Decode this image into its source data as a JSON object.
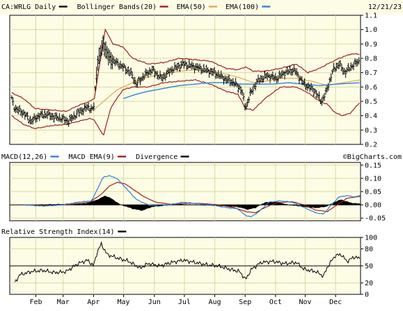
{
  "chart_data": [
    {
      "type": "ohlc",
      "panel": "price",
      "title": "CA:WRLG Daily",
      "date_label": "12/21/23",
      "legend": [
        {
          "label": "Bollinger Bands(20)",
          "color": "#9a2020"
        },
        {
          "label": "EMA(50)",
          "color": "#e0a84a"
        },
        {
          "label": "EMA(100)",
          "color": "#2f7fd8"
        }
      ],
      "legend_swatch_color": "#000000",
      "ylim": [
        0.2,
        1.1
      ],
      "y_ticks": [
        "1.1",
        "1.0",
        "0.9",
        "0.8",
        "0.7",
        "0.6",
        "0.5",
        "0.4",
        "0.3",
        "0.2"
      ],
      "y_tick_values": [
        1.1,
        1.0,
        0.9,
        0.8,
        0.7,
        0.6,
        0.5,
        0.4,
        0.3,
        0.2
      ],
      "x_ticks": [
        {
          "label": "Feb",
          "t": 0.12
        },
        {
          "label": "Mar",
          "t": 0.82
        },
        {
          "label": "Apr",
          "t": 1.6
        },
        {
          "label": "May",
          "t": 2.37
        },
        {
          "label": "Jun",
          "t": 3.16
        },
        {
          "label": "Jul",
          "t": 3.93
        },
        {
          "label": "Aug",
          "t": 4.71
        },
        {
          "label": "Sep",
          "t": 5.49
        },
        {
          "label": "Oct",
          "t": 6.27
        },
        {
          "label": "Nov",
          "t": 7.03
        },
        {
          "label": "Dec",
          "t": 7.81
        }
      ],
      "t_range": [
        -0.55,
        8.45
      ],
      "close_keys": [
        [
          -0.5,
          0.52
        ],
        [
          -0.42,
          0.45
        ],
        [
          -0.2,
          0.42
        ],
        [
          0.0,
          0.36
        ],
        [
          0.2,
          0.4
        ],
        [
          0.4,
          0.41
        ],
        [
          0.6,
          0.39
        ],
        [
          0.8,
          0.38
        ],
        [
          0.95,
          0.36
        ],
        [
          1.2,
          0.42
        ],
        [
          1.45,
          0.46
        ],
        [
          1.6,
          0.44
        ],
        [
          1.7,
          0.77
        ],
        [
          1.85,
          0.9
        ],
        [
          2.0,
          0.8
        ],
        [
          2.3,
          0.75
        ],
        [
          2.55,
          0.7
        ],
        [
          2.7,
          0.62
        ],
        [
          2.9,
          0.68
        ],
        [
          3.1,
          0.72
        ],
        [
          3.35,
          0.66
        ],
        [
          3.6,
          0.72
        ],
        [
          3.9,
          0.76
        ],
        [
          4.2,
          0.74
        ],
        [
          4.45,
          0.72
        ],
        [
          4.7,
          0.7
        ],
        [
          4.95,
          0.66
        ],
        [
          5.2,
          0.63
        ],
        [
          5.4,
          0.58
        ],
        [
          5.5,
          0.45
        ],
        [
          5.62,
          0.55
        ],
        [
          5.8,
          0.64
        ],
        [
          6.05,
          0.68
        ],
        [
          6.3,
          0.66
        ],
        [
          6.5,
          0.7
        ],
        [
          6.75,
          0.72
        ],
        [
          7.0,
          0.62
        ],
        [
          7.25,
          0.58
        ],
        [
          7.45,
          0.5
        ],
        [
          7.55,
          0.55
        ],
        [
          7.75,
          0.72
        ],
        [
          7.9,
          0.76
        ],
        [
          8.05,
          0.7
        ],
        [
          8.2,
          0.74
        ],
        [
          8.4,
          0.78
        ]
      ],
      "bb_upper_keys": [
        [
          -0.5,
          0.56
        ],
        [
          -0.2,
          0.52
        ],
        [
          0.1,
          0.45
        ],
        [
          0.5,
          0.44
        ],
        [
          0.9,
          0.43
        ],
        [
          1.2,
          0.47
        ],
        [
          1.5,
          0.5
        ],
        [
          1.62,
          0.52
        ],
        [
          1.9,
          1.0
        ],
        [
          2.1,
          0.9
        ],
        [
          2.35,
          0.88
        ],
        [
          2.6,
          0.8
        ],
        [
          3.0,
          0.76
        ],
        [
          3.4,
          0.77
        ],
        [
          3.8,
          0.8
        ],
        [
          4.2,
          0.79
        ],
        [
          4.6,
          0.78
        ],
        [
          5.0,
          0.73
        ],
        [
          5.3,
          0.72
        ],
        [
          5.5,
          0.74
        ],
        [
          5.7,
          0.71
        ],
        [
          6.0,
          0.71
        ],
        [
          6.4,
          0.73
        ],
        [
          6.8,
          0.76
        ],
        [
          7.1,
          0.7
        ],
        [
          7.4,
          0.73
        ],
        [
          7.6,
          0.76
        ],
        [
          7.9,
          0.8
        ],
        [
          8.2,
          0.83
        ],
        [
          8.45,
          0.83
        ]
      ],
      "bb_lower_keys": [
        [
          -0.5,
          0.4
        ],
        [
          -0.2,
          0.34
        ],
        [
          0.1,
          0.31
        ],
        [
          0.5,
          0.33
        ],
        [
          0.9,
          0.34
        ],
        [
          1.2,
          0.36
        ],
        [
          1.5,
          0.38
        ],
        [
          1.62,
          0.37
        ],
        [
          1.85,
          0.26
        ],
        [
          2.05,
          0.46
        ],
        [
          2.35,
          0.58
        ],
        [
          2.6,
          0.6
        ],
        [
          3.0,
          0.6
        ],
        [
          3.4,
          0.63
        ],
        [
          3.8,
          0.64
        ],
        [
          4.2,
          0.65
        ],
        [
          4.6,
          0.62
        ],
        [
          5.0,
          0.57
        ],
        [
          5.3,
          0.55
        ],
        [
          5.5,
          0.45
        ],
        [
          5.7,
          0.44
        ],
        [
          6.0,
          0.52
        ],
        [
          6.4,
          0.6
        ],
        [
          6.8,
          0.6
        ],
        [
          7.1,
          0.56
        ],
        [
          7.4,
          0.5
        ],
        [
          7.6,
          0.48
        ],
        [
          7.8,
          0.42
        ],
        [
          8.0,
          0.4
        ],
        [
          8.2,
          0.42
        ],
        [
          8.45,
          0.5
        ]
      ],
      "ema50_keys": [
        [
          1.6,
          0.44
        ],
        [
          1.9,
          0.51
        ],
        [
          2.2,
          0.58
        ],
        [
          2.6,
          0.63
        ],
        [
          3.0,
          0.67
        ],
        [
          3.4,
          0.69
        ],
        [
          3.8,
          0.71
        ],
        [
          4.2,
          0.72
        ],
        [
          4.6,
          0.71
        ],
        [
          5.0,
          0.69
        ],
        [
          5.4,
          0.66
        ],
        [
          5.7,
          0.63
        ],
        [
          6.0,
          0.64
        ],
        [
          6.4,
          0.66
        ],
        [
          6.8,
          0.66
        ],
        [
          7.2,
          0.64
        ],
        [
          7.6,
          0.61
        ],
        [
          8.0,
          0.63
        ],
        [
          8.45,
          0.65
        ]
      ],
      "ema100_keys": [
        [
          2.37,
          0.52
        ],
        [
          2.7,
          0.55
        ],
        [
          3.0,
          0.57
        ],
        [
          3.4,
          0.59
        ],
        [
          3.8,
          0.61
        ],
        [
          4.2,
          0.62
        ],
        [
          4.6,
          0.63
        ],
        [
          5.0,
          0.63
        ],
        [
          5.4,
          0.62
        ],
        [
          5.8,
          0.62
        ],
        [
          6.2,
          0.62
        ],
        [
          6.6,
          0.63
        ],
        [
          7.0,
          0.62
        ],
        [
          7.4,
          0.61
        ],
        [
          7.8,
          0.62
        ],
        [
          8.45,
          0.63
        ]
      ],
      "colors": {
        "price": "#000000",
        "bollinger": "#9a2020",
        "ema50": "#e0a84a",
        "ema100": "#2f7fd8",
        "background": "#fdfde6",
        "grid": "#d8d8a0"
      }
    },
    {
      "type": "line",
      "panel": "macd",
      "legend": [
        {
          "label": "MACD(12,26)",
          "color": "#2f7fd8"
        },
        {
          "label": "MACD EMA(9)",
          "color": "#9a2020"
        },
        {
          "label": "Divergence",
          "color": "#000000"
        }
      ],
      "watermark": "©BigCharts.com",
      "ylim": [
        -0.06,
        0.16
      ],
      "y_ticks": [
        "0.15",
        "0.10",
        "0.05",
        "0.00",
        "-0.05"
      ],
      "y_tick_values": [
        0.15,
        0.1,
        0.05,
        0.0,
        -0.05
      ],
      "macd_keys": [
        [
          -0.2,
          0.0
        ],
        [
          0.3,
          -0.005
        ],
        [
          0.8,
          0.0
        ],
        [
          1.2,
          0.01
        ],
        [
          1.55,
          0.015
        ],
        [
          1.7,
          0.06
        ],
        [
          1.85,
          0.105
        ],
        [
          2.0,
          0.11
        ],
        [
          2.2,
          0.1
        ],
        [
          2.45,
          0.06
        ],
        [
          2.7,
          0.02
        ],
        [
          3.0,
          0.0
        ],
        [
          3.3,
          -0.005
        ],
        [
          3.6,
          0.002
        ],
        [
          3.9,
          0.01
        ],
        [
          4.2,
          0.005
        ],
        [
          4.6,
          0.0
        ],
        [
          5.0,
          -0.01
        ],
        [
          5.3,
          -0.015
        ],
        [
          5.5,
          -0.04
        ],
        [
          5.65,
          -0.045
        ],
        [
          5.85,
          -0.025
        ],
        [
          6.1,
          0.01
        ],
        [
          6.4,
          0.015
        ],
        [
          6.7,
          0.01
        ],
        [
          7.0,
          -0.01
        ],
        [
          7.3,
          -0.03
        ],
        [
          7.5,
          -0.035
        ],
        [
          7.7,
          0.0
        ],
        [
          7.9,
          0.03
        ],
        [
          8.1,
          0.035
        ],
        [
          8.3,
          0.03
        ],
        [
          8.45,
          0.035
        ]
      ],
      "signal_keys": [
        [
          -0.2,
          0.0
        ],
        [
          0.5,
          -0.003
        ],
        [
          1.0,
          0.002
        ],
        [
          1.5,
          0.01
        ],
        [
          1.8,
          0.04
        ],
        [
          2.0,
          0.07
        ],
        [
          2.2,
          0.085
        ],
        [
          2.4,
          0.08
        ],
        [
          2.6,
          0.06
        ],
        [
          2.9,
          0.03
        ],
        [
          3.2,
          0.01
        ],
        [
          3.6,
          0.002
        ],
        [
          4.0,
          0.006
        ],
        [
          4.4,
          0.005
        ],
        [
          4.8,
          0.0
        ],
        [
          5.2,
          -0.01
        ],
        [
          5.5,
          -0.025
        ],
        [
          5.75,
          -0.03
        ],
        [
          6.0,
          -0.01
        ],
        [
          6.3,
          0.008
        ],
        [
          6.7,
          0.012
        ],
        [
          7.0,
          0.0
        ],
        [
          7.3,
          -0.02
        ],
        [
          7.6,
          -0.025
        ],
        [
          7.9,
          0.005
        ],
        [
          8.1,
          0.025
        ],
        [
          8.45,
          0.032
        ]
      ],
      "hist_keys": [
        [
          -0.2,
          0.0
        ],
        [
          1.4,
          0.005
        ],
        [
          1.7,
          0.02
        ],
        [
          1.9,
          0.035
        ],
        [
          2.05,
          0.025
        ],
        [
          2.3,
          0.0
        ],
        [
          2.6,
          -0.015
        ],
        [
          2.85,
          -0.022
        ],
        [
          3.1,
          -0.008
        ],
        [
          3.4,
          -0.004
        ],
        [
          3.8,
          0.003
        ],
        [
          4.2,
          0.0
        ],
        [
          4.8,
          -0.004
        ],
        [
          5.3,
          -0.008
        ],
        [
          5.55,
          -0.018
        ],
        [
          5.75,
          -0.012
        ],
        [
          6.0,
          0.01
        ],
        [
          6.3,
          0.012
        ],
        [
          6.6,
          0.0
        ],
        [
          7.0,
          -0.008
        ],
        [
          7.3,
          -0.012
        ],
        [
          7.55,
          -0.008
        ],
        [
          7.8,
          0.012
        ],
        [
          7.95,
          0.02
        ],
        [
          8.2,
          0.008
        ],
        [
          8.45,
          0.004
        ]
      ],
      "colors": {
        "macd": "#2f7fd8",
        "signal": "#9a2020",
        "divergence": "#000000",
        "background": "#fdfde6",
        "grid": "#d8d8a0"
      }
    },
    {
      "type": "line",
      "panel": "rsi",
      "legend": [
        {
          "label": "Relative Strength Index(14)",
          "color": "#000000"
        }
      ],
      "ylim": [
        0,
        100
      ],
      "y_ticks": [
        "100",
        "80",
        "50",
        "20",
        "0"
      ],
      "y_tick_values": [
        100,
        80,
        50,
        20,
        0
      ],
      "rsi_keys": [
        [
          -0.42,
          20
        ],
        [
          -0.3,
          34
        ],
        [
          0.0,
          40
        ],
        [
          0.3,
          42
        ],
        [
          0.6,
          38
        ],
        [
          0.9,
          40
        ],
        [
          1.2,
          54
        ],
        [
          1.45,
          60
        ],
        [
          1.6,
          50
        ],
        [
          1.7,
          76
        ],
        [
          1.8,
          88
        ],
        [
          1.95,
          70
        ],
        [
          2.2,
          64
        ],
        [
          2.5,
          58
        ],
        [
          2.8,
          46
        ],
        [
          3.0,
          54
        ],
        [
          3.3,
          50
        ],
        [
          3.6,
          56
        ],
        [
          3.9,
          60
        ],
        [
          4.2,
          56
        ],
        [
          4.5,
          52
        ],
        [
          4.8,
          50
        ],
        [
          5.1,
          44
        ],
        [
          5.35,
          40
        ],
        [
          5.5,
          26
        ],
        [
          5.65,
          44
        ],
        [
          5.9,
          56
        ],
        [
          6.2,
          58
        ],
        [
          6.5,
          54
        ],
        [
          6.8,
          56
        ],
        [
          7.0,
          44
        ],
        [
          7.3,
          40
        ],
        [
          7.5,
          32
        ],
        [
          7.6,
          48
        ],
        [
          7.8,
          68
        ],
        [
          7.95,
          70
        ],
        [
          8.1,
          58
        ],
        [
          8.3,
          66
        ],
        [
          8.45,
          62
        ]
      ],
      "midline": 50,
      "colors": {
        "rsi": "#000000",
        "midline": "#000000",
        "background": "#fdfde6",
        "grid": "#d8d8a0"
      }
    }
  ]
}
